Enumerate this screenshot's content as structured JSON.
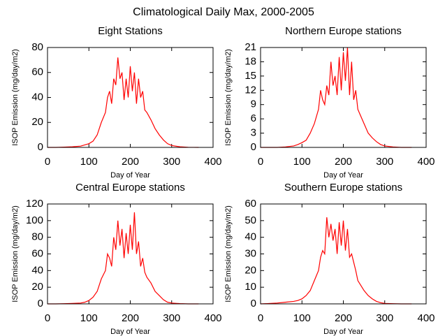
{
  "title": "Climatological Daily Max, 2000-2005",
  "chart_data": [
    {
      "type": "line",
      "title": "Eight Stations",
      "x_label": "Day of Year",
      "y_label": "ISOP Emission (mg/day/m2)",
      "xlim": [
        0,
        400
      ],
      "xticks": [
        0,
        100,
        200,
        300,
        400
      ],
      "ylim": [
        0,
        80
      ],
      "yticks": [
        0,
        20,
        40,
        60,
        80
      ],
      "series": [
        {
          "color": "#ff0000",
          "x": [
            0,
            20,
            40,
            60,
            80,
            90,
            100,
            110,
            120,
            130,
            140,
            145,
            150,
            155,
            160,
            165,
            170,
            175,
            180,
            185,
            190,
            195,
            200,
            205,
            210,
            215,
            220,
            225,
            230,
            235,
            240,
            250,
            260,
            270,
            280,
            290,
            300,
            320,
            340,
            365
          ],
          "values": [
            0,
            0,
            0.2,
            0.5,
            1,
            2,
            3,
            5,
            10,
            20,
            28,
            40,
            45,
            35,
            55,
            50,
            72,
            55,
            60,
            38,
            55,
            40,
            65,
            45,
            60,
            35,
            55,
            40,
            45,
            30,
            28,
            22,
            15,
            10,
            6,
            3,
            1.5,
            0.5,
            0.1,
            0
          ]
        }
      ]
    },
    {
      "type": "line",
      "title": "Northern Europe stations",
      "x_label": "Day of Year",
      "y_label": "ISOP Emission (mg/day/m2)",
      "xlim": [
        0,
        400
      ],
      "xticks": [
        0,
        100,
        200,
        300,
        400
      ],
      "ylim": [
        0,
        21
      ],
      "yticks": [
        0,
        3,
        6,
        9,
        12,
        15,
        18,
        21
      ],
      "series": [
        {
          "color": "#ff0000",
          "x": [
            0,
            20,
            40,
            60,
            80,
            90,
            100,
            110,
            120,
            130,
            140,
            145,
            150,
            155,
            160,
            165,
            170,
            175,
            180,
            185,
            190,
            195,
            200,
            205,
            210,
            215,
            220,
            225,
            230,
            235,
            240,
            250,
            260,
            270,
            280,
            290,
            300,
            320,
            340,
            365
          ],
          "values": [
            0,
            0,
            0,
            0.1,
            0.3,
            0.6,
            1,
            1.5,
            3,
            5,
            8,
            12,
            10,
            9,
            13,
            11,
            18,
            13,
            15,
            11,
            19,
            12,
            20,
            14,
            21,
            11,
            18,
            10,
            12,
            8,
            7,
            5,
            3,
            2,
            1.2,
            0.6,
            0.3,
            0.1,
            0,
            0
          ]
        }
      ]
    },
    {
      "type": "line",
      "title": "Central Europe stations",
      "x_label": "Day of Year",
      "y_label": "ISOP Emission (mg/day/m2)",
      "xlim": [
        0,
        400
      ],
      "xticks": [
        0,
        100,
        200,
        300,
        400
      ],
      "ylim": [
        0,
        120
      ],
      "yticks": [
        0,
        20,
        40,
        60,
        80,
        100,
        120
      ],
      "series": [
        {
          "color": "#ff0000",
          "x": [
            0,
            20,
            40,
            60,
            80,
            90,
            100,
            110,
            120,
            130,
            140,
            145,
            150,
            155,
            160,
            165,
            170,
            175,
            180,
            185,
            190,
            195,
            200,
            205,
            210,
            215,
            220,
            225,
            230,
            235,
            240,
            250,
            260,
            270,
            280,
            290,
            300,
            320,
            340,
            365
          ],
          "values": [
            0,
            0,
            0.2,
            0.5,
            1,
            2,
            4,
            8,
            15,
            30,
            40,
            60,
            55,
            45,
            80,
            65,
            100,
            70,
            90,
            55,
            85,
            60,
            95,
            65,
            110,
            60,
            75,
            45,
            55,
            38,
            32,
            25,
            15,
            10,
            5,
            2,
            1,
            0.3,
            0,
            0
          ]
        }
      ]
    },
    {
      "type": "line",
      "title": "Southern Europe stations",
      "x_label": "Day of Year",
      "y_label": "ISOP Emission (mg/day/m2)",
      "xlim": [
        0,
        400
      ],
      "xticks": [
        0,
        100,
        200,
        300,
        400
      ],
      "ylim": [
        0,
        60
      ],
      "yticks": [
        0,
        10,
        20,
        30,
        40,
        50,
        60
      ],
      "series": [
        {
          "color": "#ff0000",
          "x": [
            0,
            20,
            40,
            60,
            80,
            90,
            100,
            110,
            120,
            130,
            140,
            145,
            150,
            155,
            160,
            165,
            170,
            175,
            180,
            185,
            190,
            195,
            200,
            205,
            210,
            215,
            220,
            225,
            230,
            235,
            240,
            250,
            260,
            270,
            280,
            290,
            300,
            320,
            340,
            365
          ],
          "values": [
            0,
            0.2,
            0.5,
            1,
            1.5,
            2,
            3,
            5,
            8,
            14,
            20,
            28,
            32,
            30,
            52,
            40,
            48,
            38,
            45,
            30,
            49,
            35,
            50,
            32,
            45,
            28,
            30,
            25,
            20,
            14,
            12,
            8,
            5,
            3,
            1.5,
            0.7,
            0.3,
            0.1,
            0,
            0
          ]
        }
      ]
    }
  ]
}
